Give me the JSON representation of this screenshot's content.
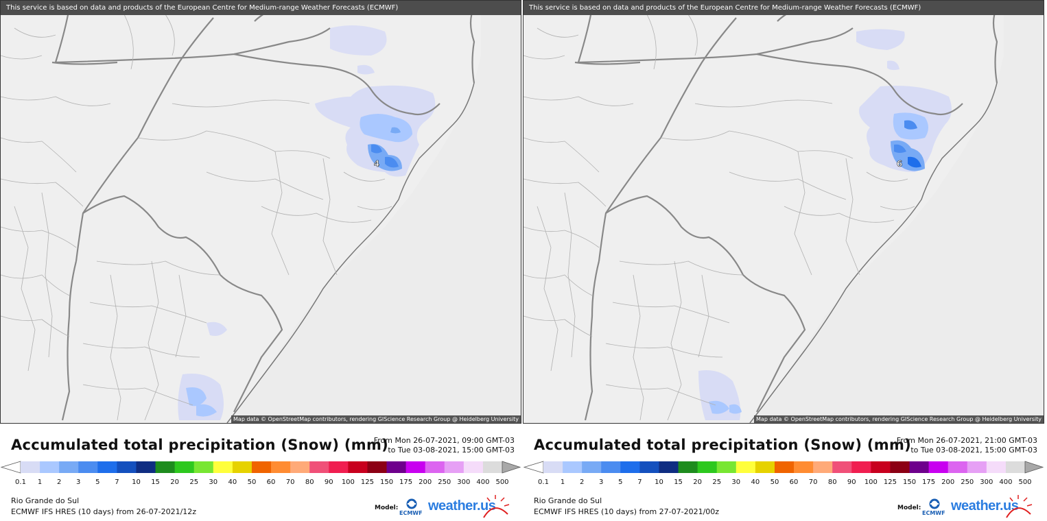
{
  "panels": [
    {
      "attribution_top": "This service is based on data and products of the European Centre for Medium-range Weather Forecasts (ECMWF)",
      "attribution_map": "Map data © OpenStreetMap contributors, rendering GIScience Research Group @ Heidelberg University",
      "title": "Accumulated total precipitation (Snow) (mm)",
      "from": "From Mon 26-07-2021, 09:00 GMT-03",
      "to": "to Tue 03-08-2021, 15:00 GMT-03",
      "region": "Rio Grande do Sul",
      "run": "ECMWF IFS HRES (10 days) from  26-07-2021/12z",
      "max_label": "4"
    },
    {
      "attribution_top": "This service is based on data and products of the European Centre for Medium-range Weather Forecasts (ECMWF)",
      "attribution_map": "Map data © OpenStreetMap contributors, rendering GIScience Research Group @ Heidelberg University",
      "title": "Accumulated total precipitation (Snow) (mm)",
      "from": "From Mon 26-07-2021, 21:00 GMT-03",
      "to": "to Tue 03-08-2021, 15:00 GMT-03",
      "region": "Rio Grande do Sul",
      "run": "ECMWF IFS HRES (10 days) from  27-07-2021/00z",
      "max_label": "6"
    }
  ],
  "scale": {
    "ticks": [
      "0.1",
      "1",
      "2",
      "3",
      "5",
      "7",
      "10",
      "15",
      "20",
      "25",
      "30",
      "40",
      "50",
      "60",
      "70",
      "80",
      "90",
      "100",
      "125",
      "150",
      "175",
      "200",
      "250",
      "300",
      "400",
      "500"
    ],
    "colors": [
      "#d8dcf5",
      "#aac8ff",
      "#78aaf5",
      "#4b8cf0",
      "#1e6eeb",
      "#1450be",
      "#0f2d82",
      "#1e8c1e",
      "#2dc81e",
      "#78e632",
      "#ffff3c",
      "#e6d200",
      "#f06400",
      "#ff8c32",
      "#ffaa78",
      "#f05078",
      "#f01e50",
      "#c8001e",
      "#8c0014",
      "#6e008c",
      "#c800f0",
      "#dc64f0",
      "#e6a0f5",
      "#f5dcfa",
      "#dcdcdc"
    ]
  },
  "model_label": "Model:",
  "ecmwf_text": "ECMWF",
  "weather_logo": "weather.us"
}
